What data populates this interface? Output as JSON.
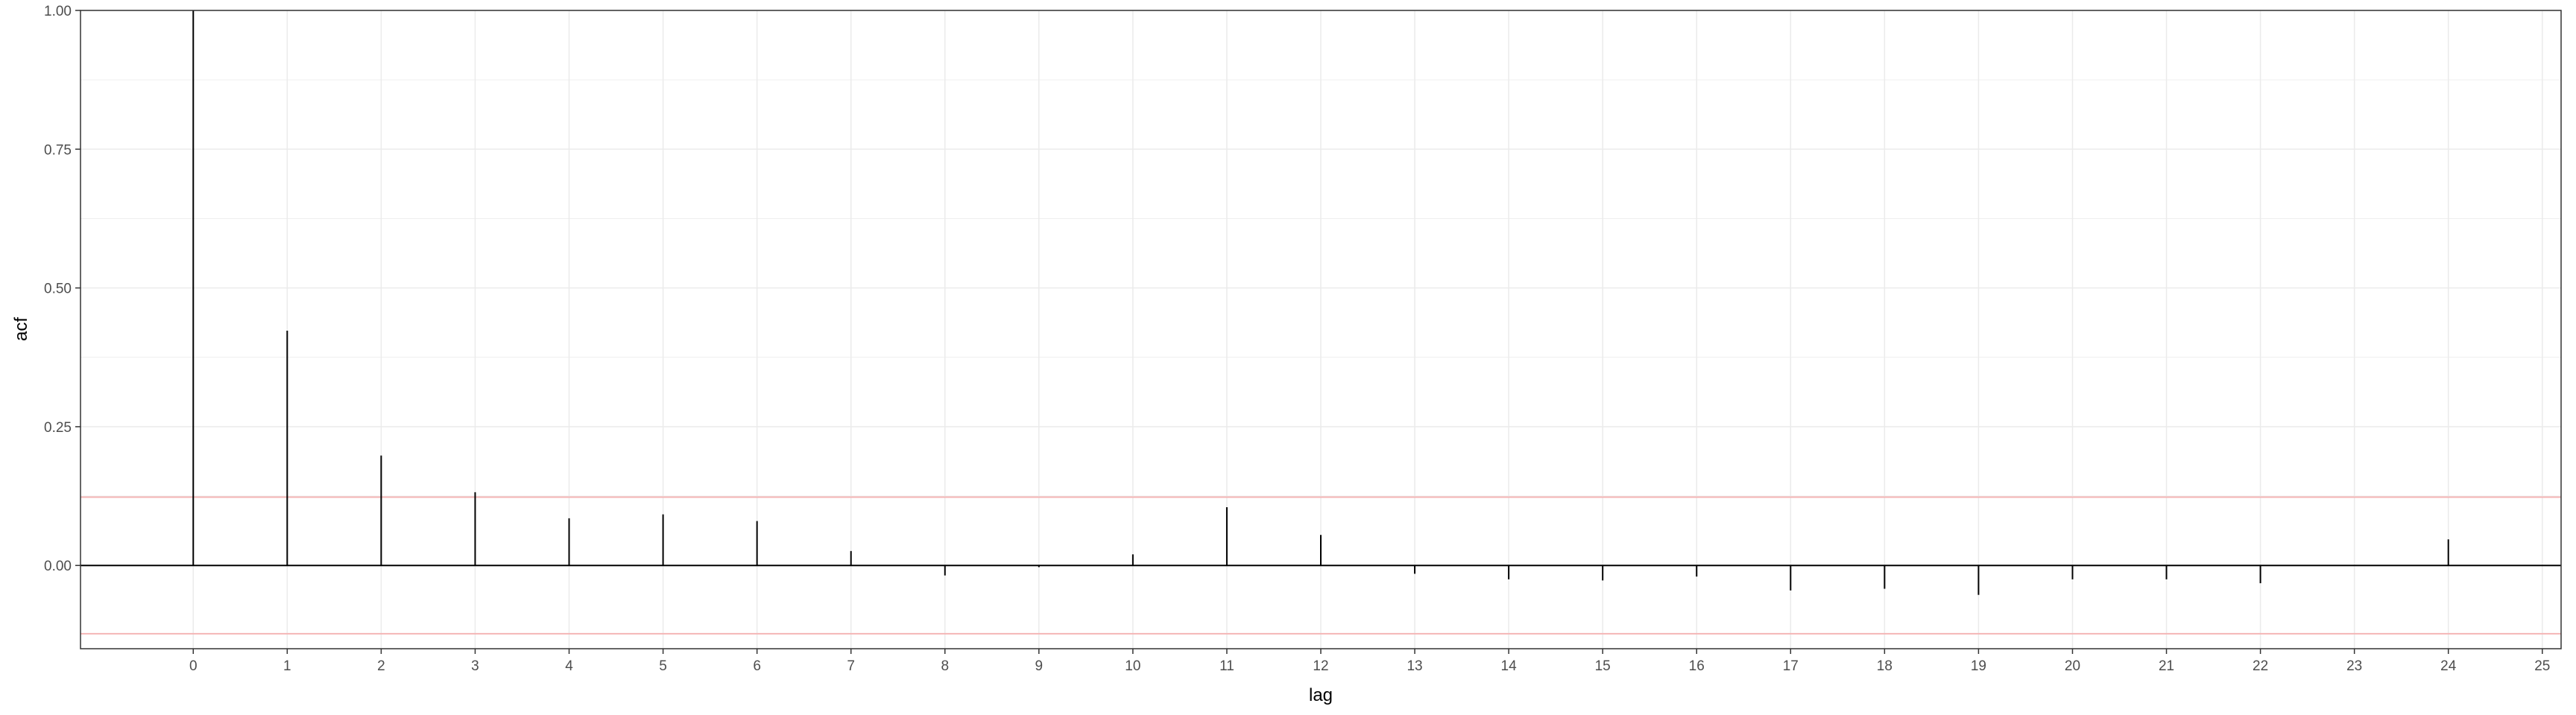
{
  "chart_data": {
    "type": "bar",
    "xlabel": "lag",
    "ylabel": "acf",
    "xlim": [
      -1.2,
      25.2
    ],
    "ylim": [
      -0.15,
      1.0
    ],
    "x_ticks": [
      0,
      1,
      2,
      3,
      4,
      5,
      6,
      7,
      8,
      9,
      10,
      11,
      12,
      13,
      14,
      15,
      16,
      17,
      18,
      19,
      20,
      21,
      22,
      23,
      24,
      25
    ],
    "y_ticks": [
      0.0,
      0.25,
      0.5,
      0.75,
      1.0
    ],
    "y_tick_labels": [
      "0.00",
      "0.25",
      "0.50",
      "0.75",
      "1.00"
    ],
    "grid": true,
    "x": [
      0,
      1,
      2,
      3,
      4,
      5,
      6,
      7,
      8,
      9,
      10,
      11,
      12,
      13,
      14,
      15,
      16,
      17,
      18,
      19,
      20,
      21,
      22,
      23,
      24
    ],
    "values": [
      1.0,
      0.423,
      0.198,
      0.132,
      0.085,
      0.092,
      0.08,
      0.026,
      -0.018,
      -0.003,
      0.02,
      0.105,
      0.055,
      -0.015,
      -0.025,
      -0.027,
      -0.02,
      -0.045,
      -0.042,
      -0.053,
      -0.025,
      -0.025,
      -0.032,
      0.0,
      0.047
    ],
    "confidence_limit": 0.123,
    "colors": {
      "bars": "#000000",
      "zero_line": "#000000",
      "confidence_lines": "#f4b6b6",
      "grid": "#ebebeb",
      "panel_border": "#333333"
    }
  }
}
